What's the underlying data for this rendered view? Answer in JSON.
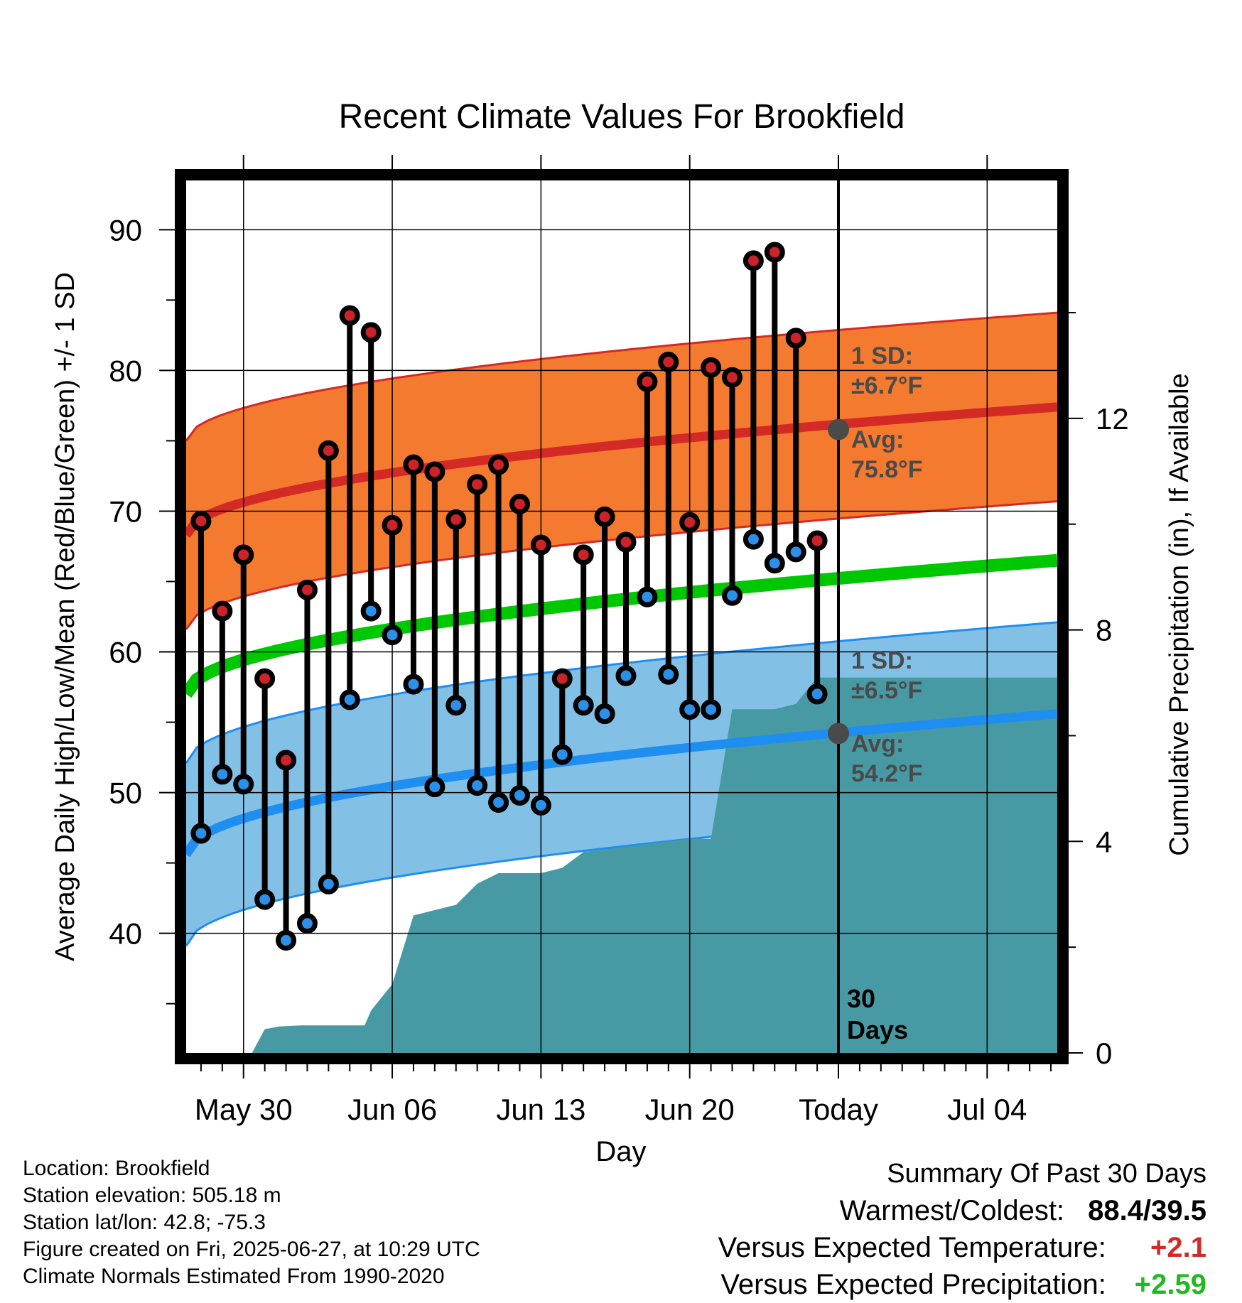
{
  "chart_data": {
    "type": "line",
    "title": "Recent Climate Values For Brookfield",
    "xlabel": "Day",
    "ylabel": "Average Daily High/Low/Mean (Red/Blue/Green) +/- 1 SD",
    "y2label": "Cumulative Precipitation (in), If Available",
    "x_tick_labels": [
      "May 30",
      "Jun 06",
      "Jun 13",
      "Jun 20",
      "Today",
      "Jul 04"
    ],
    "x_tick_days": [
      0,
      7,
      14,
      21,
      28,
      35
    ],
    "xlim": [
      -2.7,
      38.3
    ],
    "ylim": [
      31.5,
      93.5
    ],
    "y_ticks": [
      40,
      50,
      60,
      70,
      80,
      90
    ],
    "y2lim": [
      0,
      16.5
    ],
    "y2_ticks": [
      0,
      4,
      8,
      12
    ],
    "grid": true,
    "today_label_lines": [
      "30",
      "Days"
    ],
    "normals": {
      "high_mean_start": 68.3,
      "high_mean_end": 77.4,
      "low_mean_start": 45.6,
      "low_mean_end": 55.6,
      "mean_start": 57.0,
      "mean_end": 66.5,
      "high_sd": 6.7,
      "low_sd": 6.5
    },
    "annotations": {
      "high_sd_line1": "1 SD:",
      "high_sd_line2": "±6.7°F",
      "high_avg_line1": "Avg:",
      "high_avg_line2": "75.8°F",
      "low_sd_line1": "1 SD:",
      "low_sd_line2": "±6.5°F",
      "low_avg_line1": "Avg:",
      "low_avg_line2": "54.2°F",
      "high_avg_value": 75.8,
      "low_avg_value": 54.2
    },
    "series": [
      {
        "name": "High",
        "x": [
          -2,
          -1,
          0,
          1,
          2,
          3,
          4,
          5,
          6,
          7,
          8,
          9,
          10,
          11,
          12,
          13,
          14,
          15,
          16,
          17,
          18,
          19,
          20,
          21,
          22,
          23,
          24,
          25,
          26,
          27
        ],
        "values": [
          69.3,
          62.9,
          66.9,
          58.1,
          52.3,
          64.4,
          74.3,
          83.9,
          82.7,
          69.0,
          73.3,
          72.8,
          69.4,
          71.9,
          73.3,
          70.5,
          67.6,
          58.1,
          66.9,
          69.6,
          67.8,
          79.2,
          80.6,
          69.2,
          80.2,
          79.5,
          87.8,
          88.4,
          82.3,
          67.9
        ]
      },
      {
        "name": "Low",
        "x": [
          -2,
          -1,
          0,
          1,
          2,
          3,
          4,
          5,
          6,
          7,
          8,
          9,
          10,
          11,
          12,
          13,
          14,
          15,
          16,
          17,
          18,
          19,
          20,
          21,
          22,
          23,
          24,
          25,
          26,
          27
        ],
        "values": [
          47.1,
          51.3,
          50.6,
          42.4,
          39.5,
          40.7,
          43.5,
          56.6,
          62.9,
          61.2,
          57.7,
          50.4,
          56.2,
          50.5,
          49.3,
          49.8,
          49.1,
          52.7,
          56.2,
          55.6,
          58.3,
          63.9,
          58.4,
          55.9,
          55.9,
          64.0,
          68.0,
          66.3,
          67.1,
          57.0
        ]
      },
      {
        "name": "Cumulative Precipitation",
        "x": [
          -2.7,
          0.4,
          1.0,
          1.7,
          2.7,
          3.7,
          4.7,
          5.7,
          6.0,
          7.0,
          8.0,
          9.0,
          10.0,
          11.0,
          12.0,
          13.0,
          14.0,
          15.0,
          16.0,
          17.0,
          18.0,
          19.0,
          20.0,
          21.0,
          22.0,
          23.0,
          24.0,
          25.0,
          26.0,
          27.0,
          28.0,
          29.0,
          30.0,
          31.0,
          32.0,
          33.0,
          34.0,
          35.0,
          36.0,
          37.0,
          38.3
        ],
        "values": [
          0,
          0,
          0.45,
          0.5,
          0.52,
          0.52,
          0.52,
          0.52,
          0.8,
          1.3,
          2.6,
          2.7,
          2.8,
          3.2,
          3.4,
          3.4,
          3.4,
          3.5,
          3.8,
          3.85,
          3.9,
          3.95,
          4.0,
          4.05,
          4.05,
          6.5,
          6.5,
          6.5,
          6.6,
          7.1,
          7.1,
          7.1,
          7.1,
          7.1,
          7.1,
          7.1,
          7.1,
          7.1,
          7.1,
          7.1,
          7.1
        ]
      }
    ],
    "colors": {
      "high_band": "#f47a30",
      "high_line": "#d42a26",
      "high_edge": "#d42a26",
      "low_band": "#82c0e6",
      "low_line": "#1f8ef1",
      "low_edge": "#1f8ef1",
      "mean_line": "#00c800",
      "precip": "#479aa3",
      "high_dot": "#cc2229",
      "low_dot": "#2a90e8",
      "avg_dot": "#4a4a4a",
      "annotation_text": "#4a4a4a"
    }
  },
  "info": {
    "location": "Location: Brookfield",
    "elevation": "Station elevation: 505.18 m",
    "latlon": "Station lat/lon: 42.8; -75.3",
    "created": "Figure created on Fri, 2025-06-27, at 10:29 UTC",
    "normals": "Climate Normals Estimated From 1990-2020"
  },
  "summary": {
    "heading": "Summary Of Past 30 Days",
    "warm_cold_label": "Warmest/Coldest:",
    "warm_cold_value": "88.4/39.5",
    "temp_label": "Versus Expected Temperature:",
    "temp_value": "+2.1",
    "temp_color": "#d42a26",
    "precip_label": "Versus Expected Precipitation:",
    "precip_value": "+2.59",
    "precip_color": "#22b822"
  }
}
